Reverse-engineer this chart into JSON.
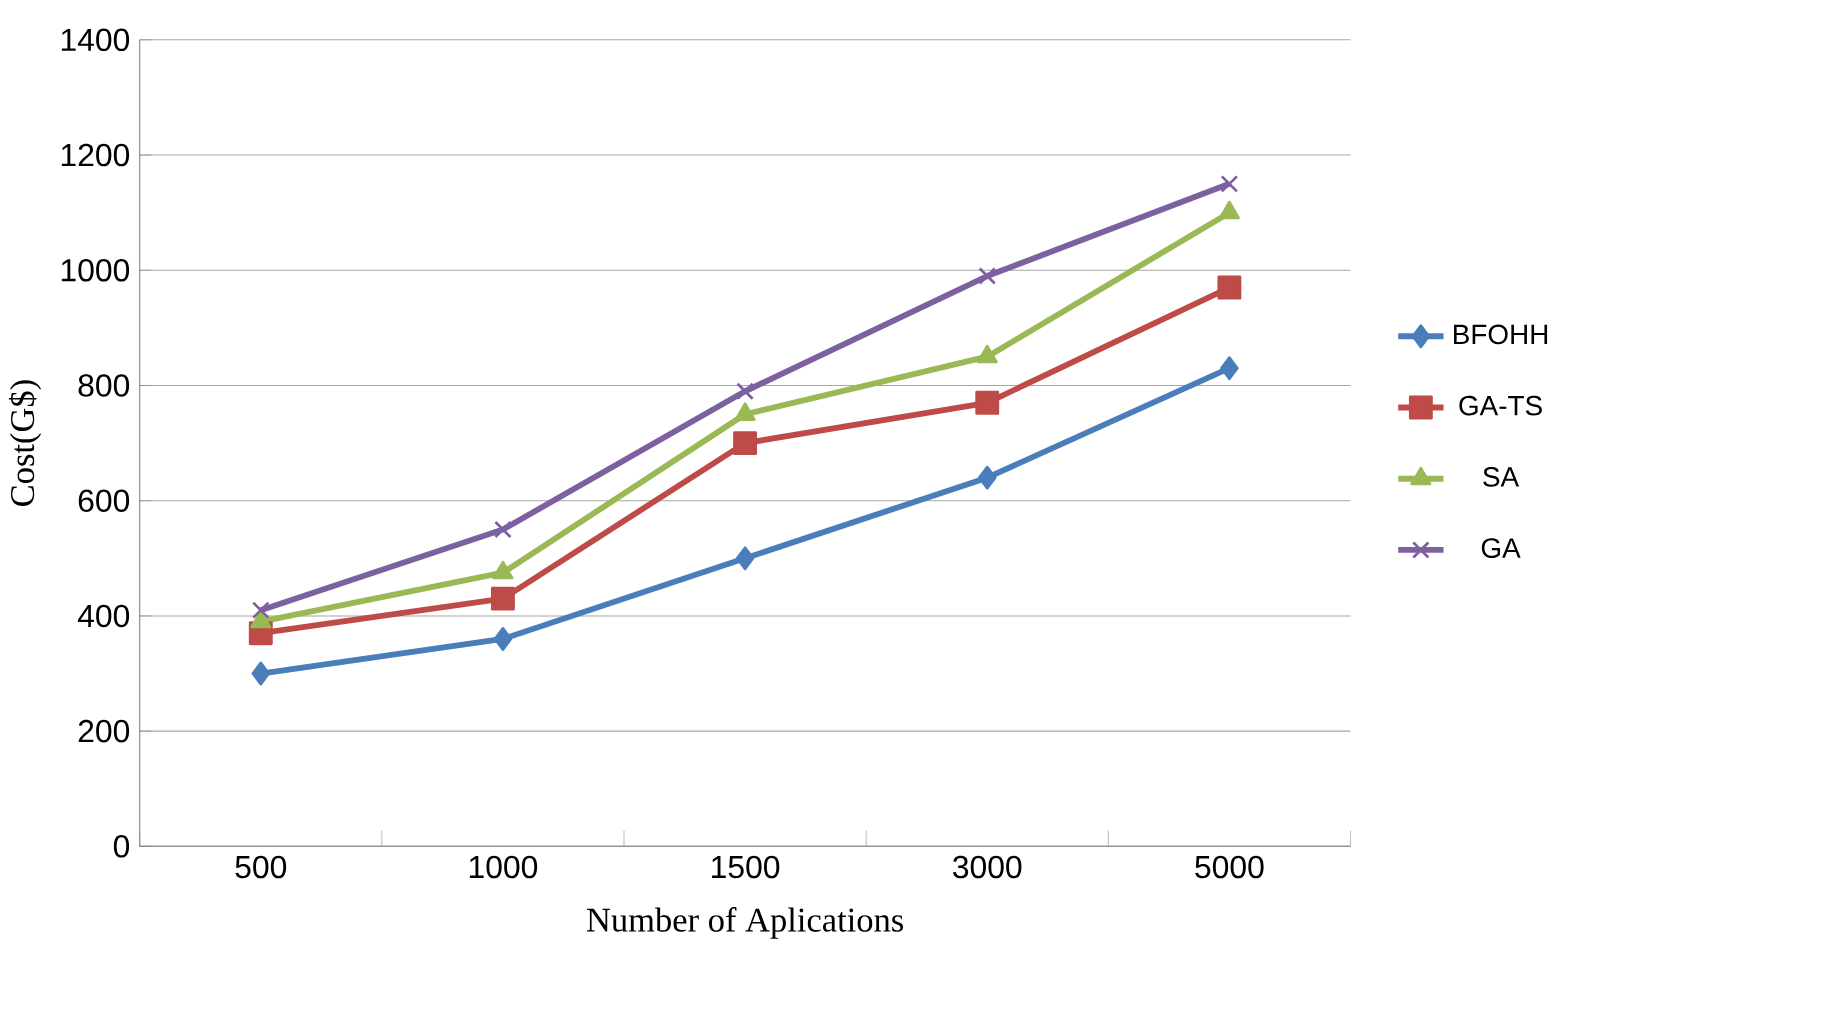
{
  "chart_data": {
    "type": "line",
    "xlabel": "Number of  Aplications",
    "ylabel": "Cost(G$)",
    "categories": [
      "500",
      "1000",
      "1500",
      "3000",
      "5000"
    ],
    "series": [
      {
        "name": "BFOHH",
        "color": "#4a7ebb",
        "marker": "diamond",
        "values": [
          300,
          360,
          500,
          640,
          830
        ]
      },
      {
        "name": "GA-TS",
        "color": "#be4b48",
        "marker": "square",
        "values": [
          370,
          430,
          700,
          770,
          970
        ]
      },
      {
        "name": "SA",
        "color": "#98b954",
        "marker": "triangle",
        "values": [
          390,
          475,
          750,
          850,
          1100
        ]
      },
      {
        "name": "GA",
        "color": "#7d60a0",
        "marker": "cross",
        "values": [
          410,
          550,
          790,
          990,
          1150
        ]
      }
    ],
    "ylim": [
      0,
      1400
    ],
    "yticks": [
      0,
      200,
      400,
      600,
      800,
      1000,
      1200,
      1400
    ],
    "grid": "y",
    "legend": "right",
    "line_style": "solid"
  }
}
